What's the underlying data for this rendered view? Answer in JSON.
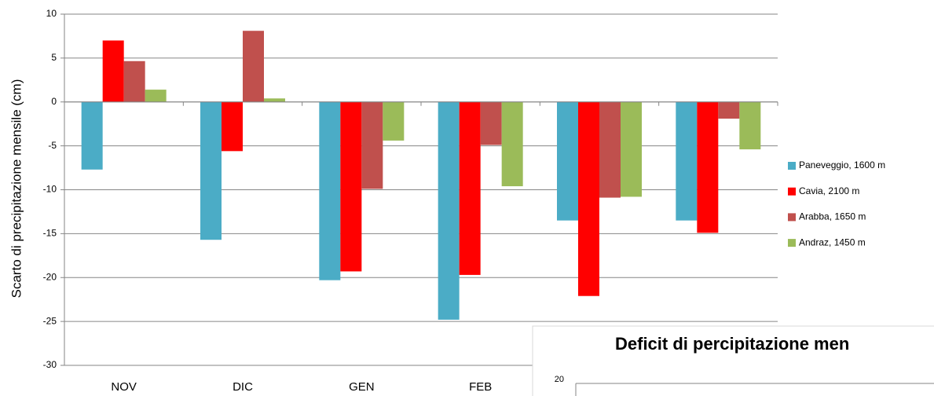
{
  "chart_data": [
    {
      "type": "bar",
      "y_label": "Scarto di precipitazione mensile (cm)",
      "categories": [
        "NOV",
        "DIC",
        "GEN",
        "FEB",
        null,
        null
      ],
      "series": [
        {
          "name": "Paneveggio, 1600 m",
          "color": "#4bacc6",
          "values": [
            -7.7,
            -15.7,
            -20.3,
            -24.8,
            -13.5,
            -13.5
          ]
        },
        {
          "name": "Cavia, 2100 m",
          "color": "#ff0000",
          "values": [
            7.0,
            -5.6,
            -19.3,
            -19.7,
            -22.1,
            -14.9
          ]
        },
        {
          "name": "Arabba, 1650 m",
          "color": "#c0504d",
          "values": [
            4.65,
            8.1,
            -9.9,
            -4.9,
            -10.9,
            -1.9
          ]
        },
        {
          "name": "Andraz, 1450 m",
          "color": "#9bbb59",
          "values": [
            1.4,
            0.4,
            -4.4,
            -9.6,
            -10.8,
            -5.4
          ]
        }
      ],
      "ylim": [
        -30,
        10
      ],
      "yticks": [
        -30,
        -25,
        -20,
        -15,
        -10,
        -5,
        0,
        5,
        10
      ],
      "grid": true,
      "legend": "right"
    },
    {
      "type": "bar",
      "title": "Deficit di percipitazione men",
      "yticks": [
        20
      ]
    }
  ]
}
